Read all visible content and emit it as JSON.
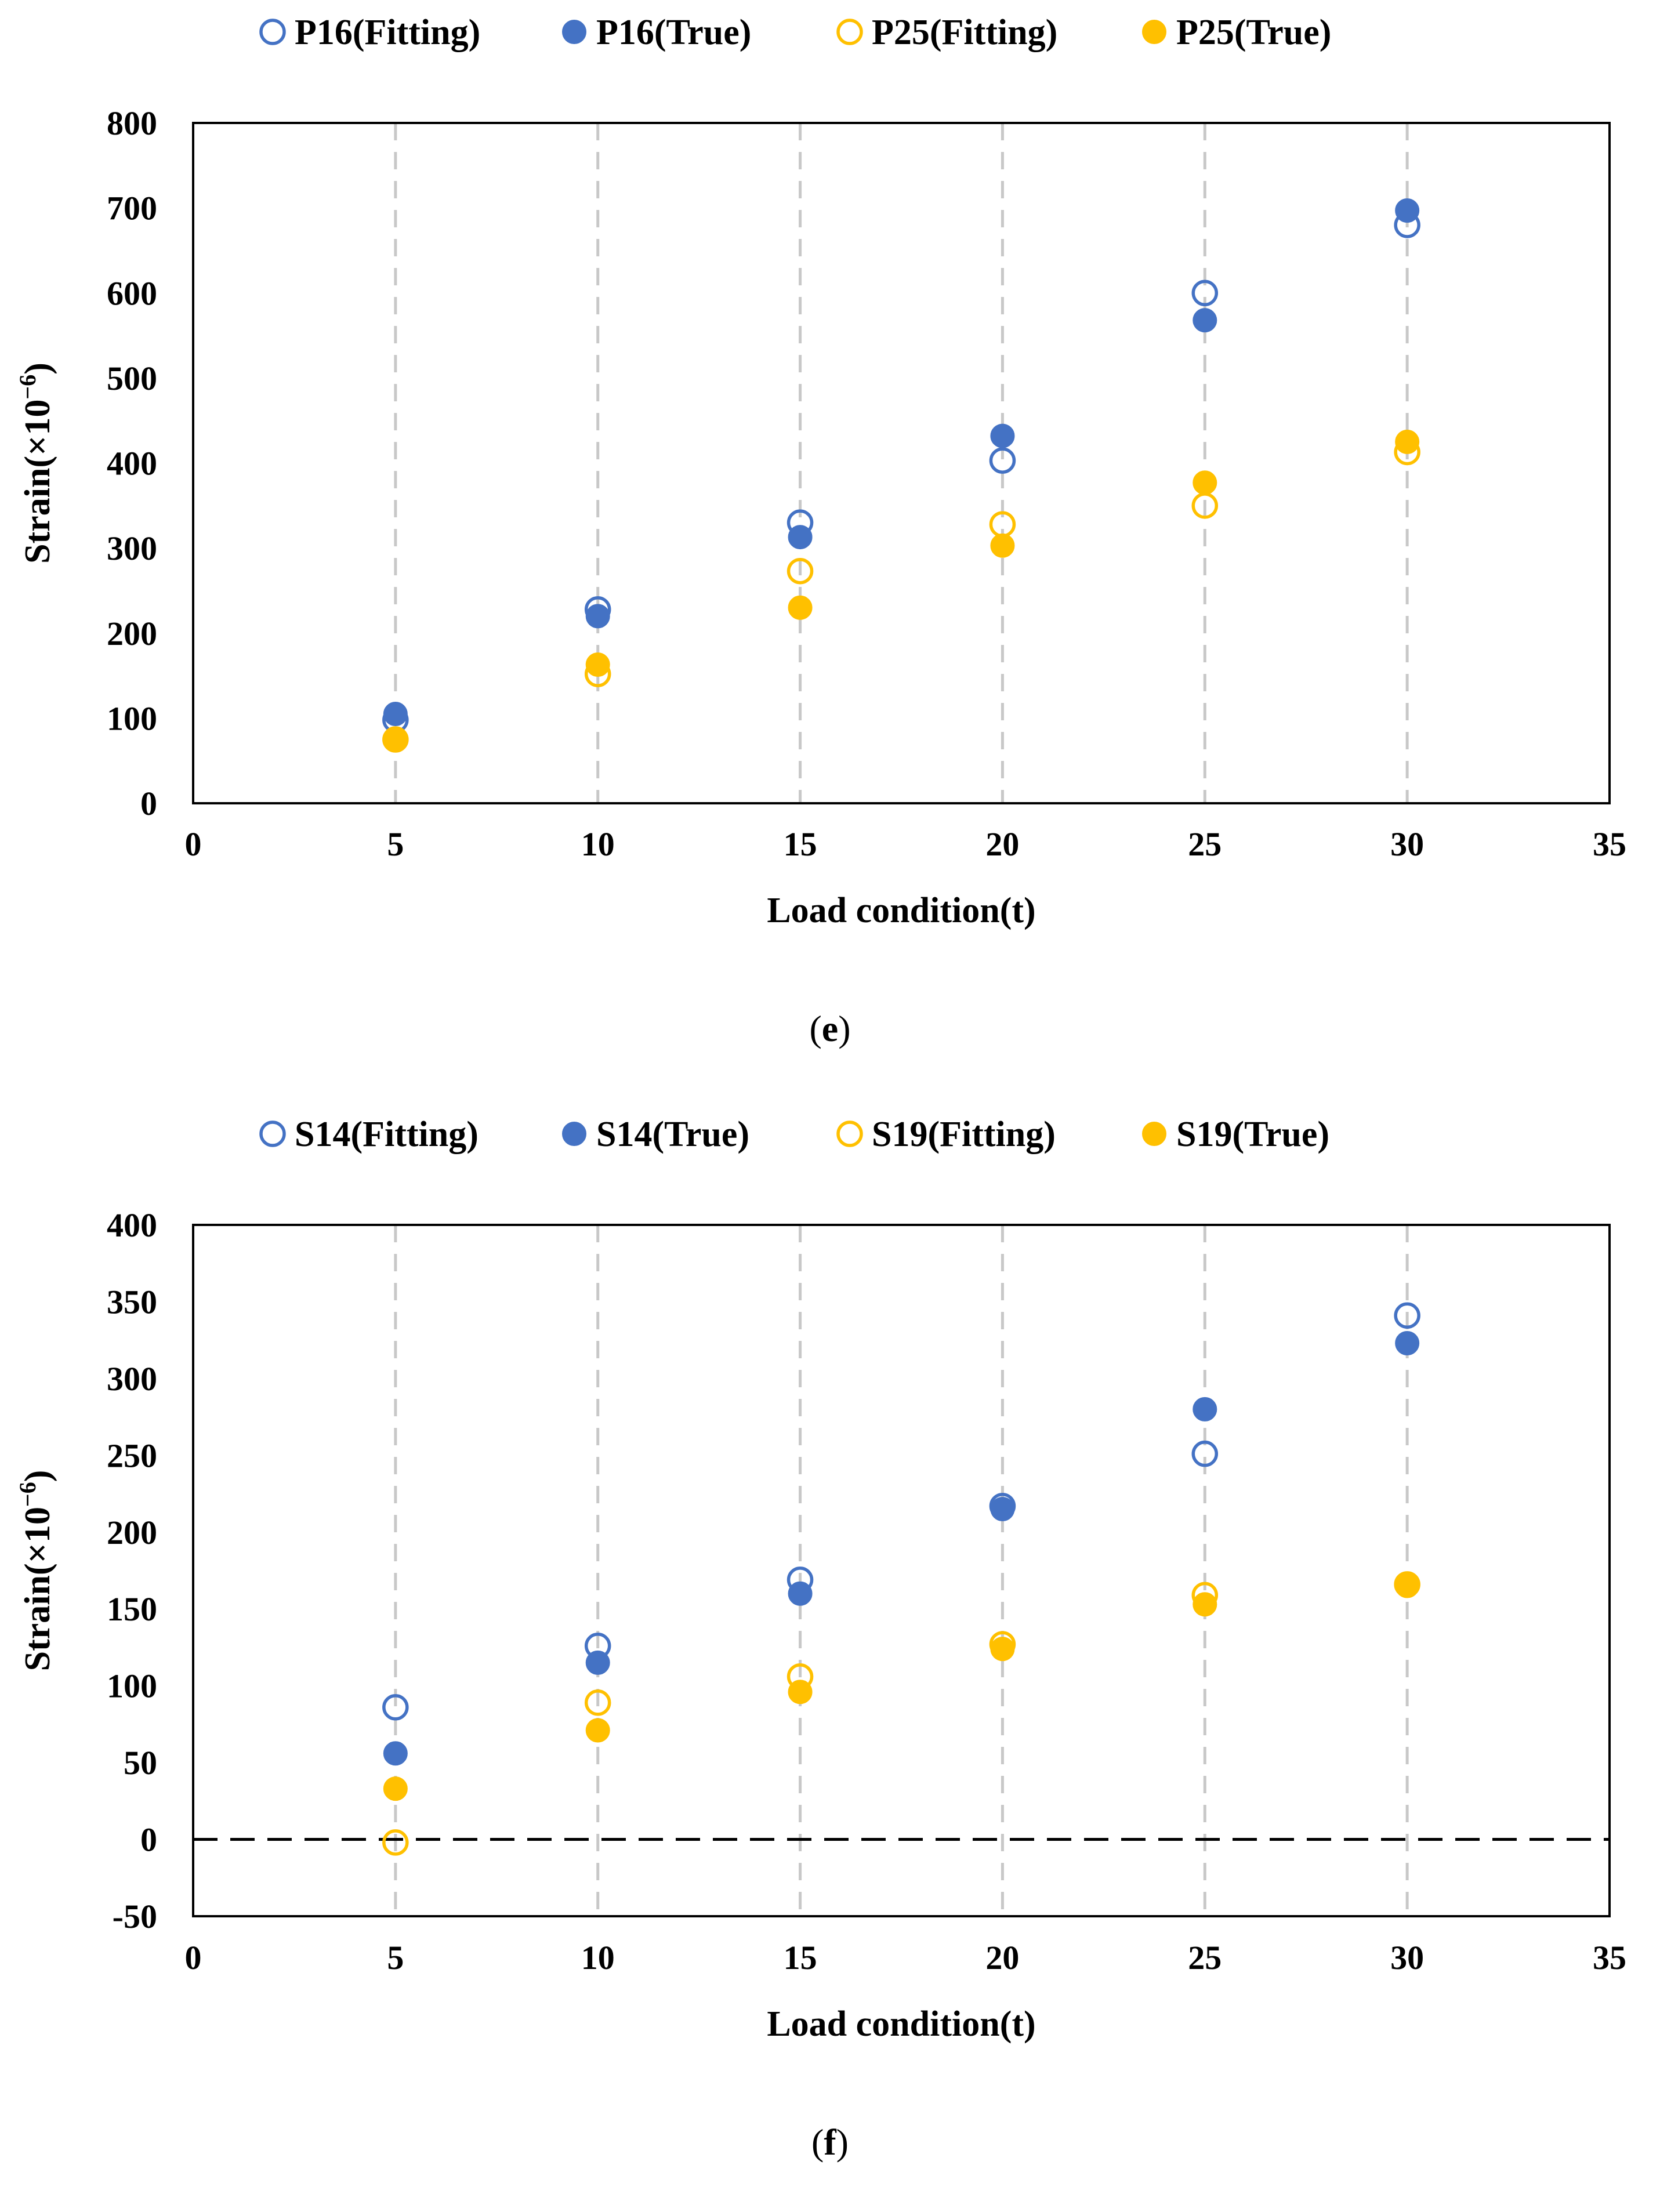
{
  "chart_data": [
    {
      "type": "scatter",
      "panel_label": "e",
      "xlabel": "Load condition(t)",
      "ylabel_prefix": "Strain(×10",
      "ylabel_sup": "−6",
      "ylabel_suffix": ")",
      "xlim": [
        0,
        35
      ],
      "ylim": [
        0,
        800
      ],
      "xticks": [
        0,
        5,
        10,
        15,
        20,
        25,
        30,
        35
      ],
      "yticks": [
        0,
        100,
        200,
        300,
        400,
        500,
        600,
        700,
        800
      ],
      "vertical_gridlines": [
        5,
        10,
        15,
        20,
        25,
        30
      ],
      "zero_line": false,
      "legend_position": "top",
      "series": [
        {
          "name": "P16(Fitting)",
          "marker": "open",
          "color": "#4472C4",
          "x": [
            5,
            10,
            15,
            20,
            25,
            30
          ],
          "y": [
            98,
            228,
            330,
            403,
            600,
            680
          ]
        },
        {
          "name": "P16(True)",
          "marker": "filled",
          "color": "#4472C4",
          "x": [
            5,
            10,
            15,
            20,
            25,
            30
          ],
          "y": [
            105,
            220,
            313,
            432,
            568,
            697
          ]
        },
        {
          "name": "P25(Fitting)",
          "marker": "open",
          "color": "#FFC000",
          "x": [
            5,
            10,
            15,
            20,
            25,
            30
          ],
          "y": [
            75,
            152,
            273,
            328,
            350,
            413
          ]
        },
        {
          "name": "P25(True)",
          "marker": "filled",
          "color": "#FFC000",
          "x": [
            5,
            10,
            15,
            20,
            25,
            30
          ],
          "y": [
            76,
            163,
            230,
            303,
            377,
            425
          ]
        }
      ]
    },
    {
      "type": "scatter",
      "panel_label": "f",
      "xlabel": "Load condition(t)",
      "ylabel_prefix": "Strain(×10",
      "ylabel_sup": "−6",
      "ylabel_suffix": ")",
      "xlim": [
        0,
        35
      ],
      "ylim": [
        -50,
        400
      ],
      "xticks": [
        0,
        5,
        10,
        15,
        20,
        25,
        30,
        35
      ],
      "yticks": [
        -50,
        0,
        50,
        100,
        150,
        200,
        250,
        300,
        350,
        400
      ],
      "vertical_gridlines": [
        5,
        10,
        15,
        20,
        25,
        30
      ],
      "zero_line": true,
      "legend_position": "top",
      "series": [
        {
          "name": "S14(Fitting)",
          "marker": "open",
          "color": "#4472C4",
          "x": [
            5,
            10,
            15,
            20,
            25,
            30
          ],
          "y": [
            86,
            126,
            169,
            217,
            251,
            341
          ]
        },
        {
          "name": "S14(True)",
          "marker": "filled",
          "color": "#4472C4",
          "x": [
            5,
            10,
            15,
            20,
            25,
            30
          ],
          "y": [
            56,
            115,
            160,
            215,
            280,
            323
          ]
        },
        {
          "name": "S19(Fitting)",
          "marker": "open",
          "color": "#FFC000",
          "x": [
            5,
            10,
            15,
            20,
            25,
            30
          ],
          "y": [
            -2,
            89,
            106,
            127,
            159,
            166
          ]
        },
        {
          "name": "S19(True)",
          "marker": "filled",
          "color": "#FFC000",
          "x": [
            5,
            10,
            15,
            20,
            25,
            30
          ],
          "y": [
            33,
            71,
            96,
            124,
            153,
            165
          ]
        }
      ]
    }
  ]
}
